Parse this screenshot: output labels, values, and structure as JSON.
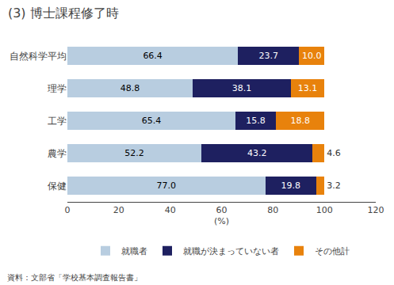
{
  "chart_data": {
    "type": "bar",
    "orientation": "horizontal",
    "stacked": true,
    "title": "(3) 博士課程修了時",
    "categories": [
      "自然科学平均",
      "理学",
      "工学",
      "農学",
      "保健"
    ],
    "series": [
      {
        "name": "就職者",
        "color": "#b8cde0",
        "values": [
          66.4,
          48.8,
          65.4,
          52.2,
          77.0
        ],
        "value_labels": [
          "66.4",
          "48.8",
          "65.4",
          "52.2",
          "77.0"
        ]
      },
      {
        "name": "就職が決まっていない者",
        "color": "#1e2060",
        "values": [
          23.7,
          38.1,
          15.8,
          43.2,
          19.8
        ],
        "value_labels": [
          "23.7",
          "38.1",
          "15.8",
          "43.2",
          "19.8"
        ]
      },
      {
        "name": "その他計",
        "color": "#e8820c",
        "values": [
          10.0,
          13.1,
          18.8,
          4.6,
          3.2
        ],
        "value_labels": [
          "10.0",
          "13.1",
          "18.8",
          "4.6",
          "3.2"
        ]
      }
    ],
    "xlabel": "(%)",
    "xlim": [
      0,
      120
    ],
    "xticks": [
      0,
      20,
      40,
      60,
      80,
      100,
      120
    ],
    "data_labels": true,
    "grid": false,
    "legend": "bottom",
    "annotations": [
      "資料：文部省「学校基本調査報告書」"
    ]
  }
}
